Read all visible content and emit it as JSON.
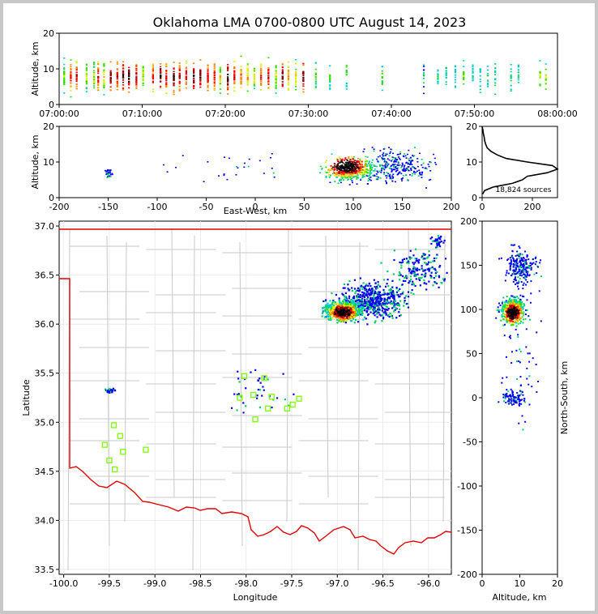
{
  "chart_data": {
    "title": "Oklahoma LMA 0700-0800 UTC August 14, 2023",
    "panels": [
      {
        "id": "time-altitude",
        "type": "scatter",
        "xlabel": "",
        "ylabel": "Altitude, km",
        "x_ticks": [
          "07:00:00",
          "07:10:00",
          "07:20:00",
          "07:30:00",
          "07:40:00",
          "07:50:00",
          "08:00:00"
        ],
        "xlim_minutes": [
          0,
          60
        ],
        "ylim": [
          0,
          20
        ],
        "y_ticks": [
          "0",
          "10",
          "20"
        ],
        "active_minutes": [
          0.5,
          1.3,
          2.0,
          3.2,
          4.1,
          4.6,
          5.3,
          6.1,
          6.9,
          7.6,
          8.3,
          9.2,
          10.0,
          11.2,
          12.1,
          12.8,
          13.7,
          14.4,
          15.2,
          16.1,
          16.9,
          17.8,
          18.6,
          19.3,
          20.2,
          21.0,
          21.8,
          22.6,
          23.4,
          24.2,
          25.1,
          26.0,
          26.8,
          27.5,
          28.4,
          29.3,
          30.8,
          32.5,
          34.5,
          38.8,
          43.8,
          45.5,
          46.5,
          47.6,
          48.6,
          49.7,
          50.6,
          51.5,
          52.4,
          54.3,
          55.2,
          57.8,
          58.5
        ]
      },
      {
        "id": "east-west-altitude",
        "type": "scatter",
        "xlabel": "East-West, km",
        "ylabel": "Altitude, km",
        "xlim": [
          -200,
          200
        ],
        "ylim": [
          0,
          20
        ],
        "x_ticks": [
          "-200",
          "-150",
          "-100",
          "-50",
          "0",
          "50",
          "100",
          "150",
          "200"
        ],
        "y_ticks": [
          "0",
          "10",
          "20"
        ]
      },
      {
        "id": "altitude-histogram",
        "type": "line",
        "xlim": [
          0,
          300
        ],
        "ylim": [
          0,
          20
        ],
        "x_ticks": [
          "0",
          "200"
        ],
        "y_ticks": [
          "0",
          "10",
          "20"
        ],
        "annotation": "18,824 sources",
        "profile": [
          [
            1,
            2
          ],
          [
            2,
            10
          ],
          [
            3,
            45
          ],
          [
            4,
            120
          ],
          [
            5,
            160
          ],
          [
            6,
            180
          ],
          [
            7,
            260
          ],
          [
            8,
            300
          ],
          [
            9,
            280
          ],
          [
            10,
            180
          ],
          [
            11,
            95
          ],
          [
            12,
            60
          ],
          [
            13,
            35
          ],
          [
            14,
            20
          ],
          [
            15,
            14
          ],
          [
            16,
            10
          ],
          [
            17,
            8
          ],
          [
            18,
            5
          ],
          [
            19,
            3
          ],
          [
            20,
            0
          ]
        ]
      },
      {
        "id": "plan-view-map",
        "type": "scatter",
        "xlabel": "Longitude",
        "ylabel": "Latitude",
        "xlim": [
          -100.05,
          -95.75
        ],
        "ylim": [
          33.45,
          37.05
        ],
        "x_ticks": [
          "-100.0",
          "-99.5",
          "-99.0",
          "-98.5",
          "-98.0",
          "-97.5",
          "-97.0",
          "-96.5",
          "-96.0"
        ],
        "y_ticks": [
          "33.5",
          "34.0",
          "34.5",
          "35.0",
          "35.5",
          "36.0",
          "36.5",
          "37.0"
        ],
        "stations": [
          [
            -99.55,
            34.77
          ],
          [
            -99.45,
            34.97
          ],
          [
            -99.38,
            34.86
          ],
          [
            -99.35,
            34.7
          ],
          [
            -99.5,
            34.61
          ],
          [
            -99.44,
            34.52
          ],
          [
            -99.1,
            34.72
          ],
          [
            -98.02,
            35.47
          ],
          [
            -97.92,
            35.28
          ],
          [
            -98.07,
            35.25
          ],
          [
            -97.8,
            35.45
          ],
          [
            -97.72,
            35.26
          ],
          [
            -97.76,
            35.14
          ],
          [
            -97.9,
            35.03
          ],
          [
            -97.55,
            35.14
          ],
          [
            -97.49,
            35.18
          ],
          [
            -97.42,
            35.24
          ]
        ]
      },
      {
        "id": "altitude-north-south",
        "type": "scatter",
        "xlabel": "Altitude, km",
        "ylabel": "North-South, km",
        "xlim": [
          0,
          20
        ],
        "ylim": [
          -200,
          200
        ],
        "x_ticks": [
          "0",
          "10",
          "20"
        ],
        "y_ticks": [
          "-200",
          "-150",
          "-100",
          "-50",
          "0",
          "50",
          "100",
          "150",
          "200"
        ]
      }
    ]
  }
}
